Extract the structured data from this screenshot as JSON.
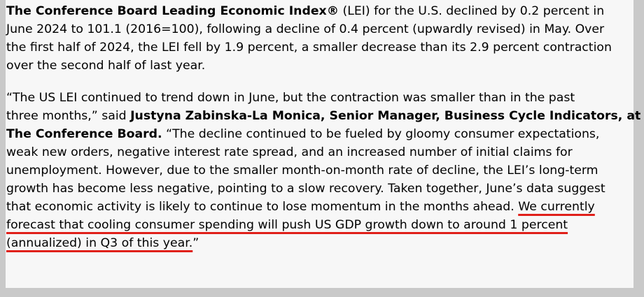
{
  "paragraph1": {
    "line1_bold": "The Conference Board Leading Economic Index®",
    "line1_rest": " (LEI) for the U.S. declined by 0.2 percent in",
    "line2": "June 2024 to 101.1 (2016=100), following a decline of 0.4 percent (upwardly revised) in May. Over",
    "line3": "the first half of 2024, the LEI fell by 1.9 percent, a smaller decrease than its 2.9 percent contraction",
    "line4": "over the second half of last year."
  },
  "paragraph2": {
    "line1": "“The US LEI continued to trend down in June, but the contraction was smaller than in the past",
    "line2_plain": "three months,” said ",
    "line2_bold": "Justyna Zabinska-La Monica, Senior Manager, Business Cycle Indicators, at",
    "line3_bold": "The Conference Board.",
    "line3_rest": " “The decline continued to be fueled by gloomy consumer expectations,",
    "line4": "weak new orders, negative interest rate spread, and an increased number of initial claims for",
    "line5": "unemployment. However, due to the smaller month-on-month rate of decline, the LEI’s long-term",
    "line6": "growth has become less negative, pointing to a slow recovery. Taken together, June’s data suggest",
    "line7_plain": "that economic activity is likely to continue to lose momentum in the months ahead. ",
    "line7_highlight": "We currently",
    "line8_highlight": "forecast that cooling consumer spending will push US GDP growth down to around 1 percent",
    "line9_highlight": "(annualized) in Q3 of this year.",
    "line9_end": "”"
  },
  "colors": {
    "highlight_underline": "#e0201a",
    "page_background": "#f7f7f7",
    "frame": "#c9c9c9"
  }
}
